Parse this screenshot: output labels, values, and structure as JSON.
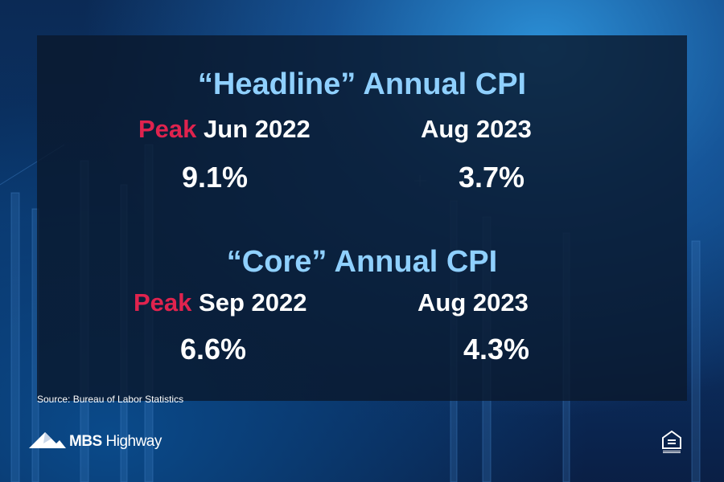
{
  "headline": {
    "title": "“Headline” Annual CPI",
    "peak_word": "Peak",
    "peak_date": "Jun 2022",
    "latest_date": "Aug 2023",
    "peak_value": "9.1%",
    "latest_value": "3.7%"
  },
  "core": {
    "title": "“Core” Annual CPI",
    "peak_word": "Peak",
    "peak_date": "Sep 2022",
    "latest_date": "Aug 2023",
    "peak_value": "6.6%",
    "latest_value": "4.3%"
  },
  "source": "Source: Bureau of Labor Statistics",
  "brand": {
    "name_bold": "MBS",
    "name_regular": " Highway"
  },
  "icons": [
    "mountain-logo-icon",
    "equal-housing-icon"
  ],
  "colors": {
    "title": "#8fd0ff",
    "peak": "#e0234e",
    "text": "#ffffff"
  }
}
